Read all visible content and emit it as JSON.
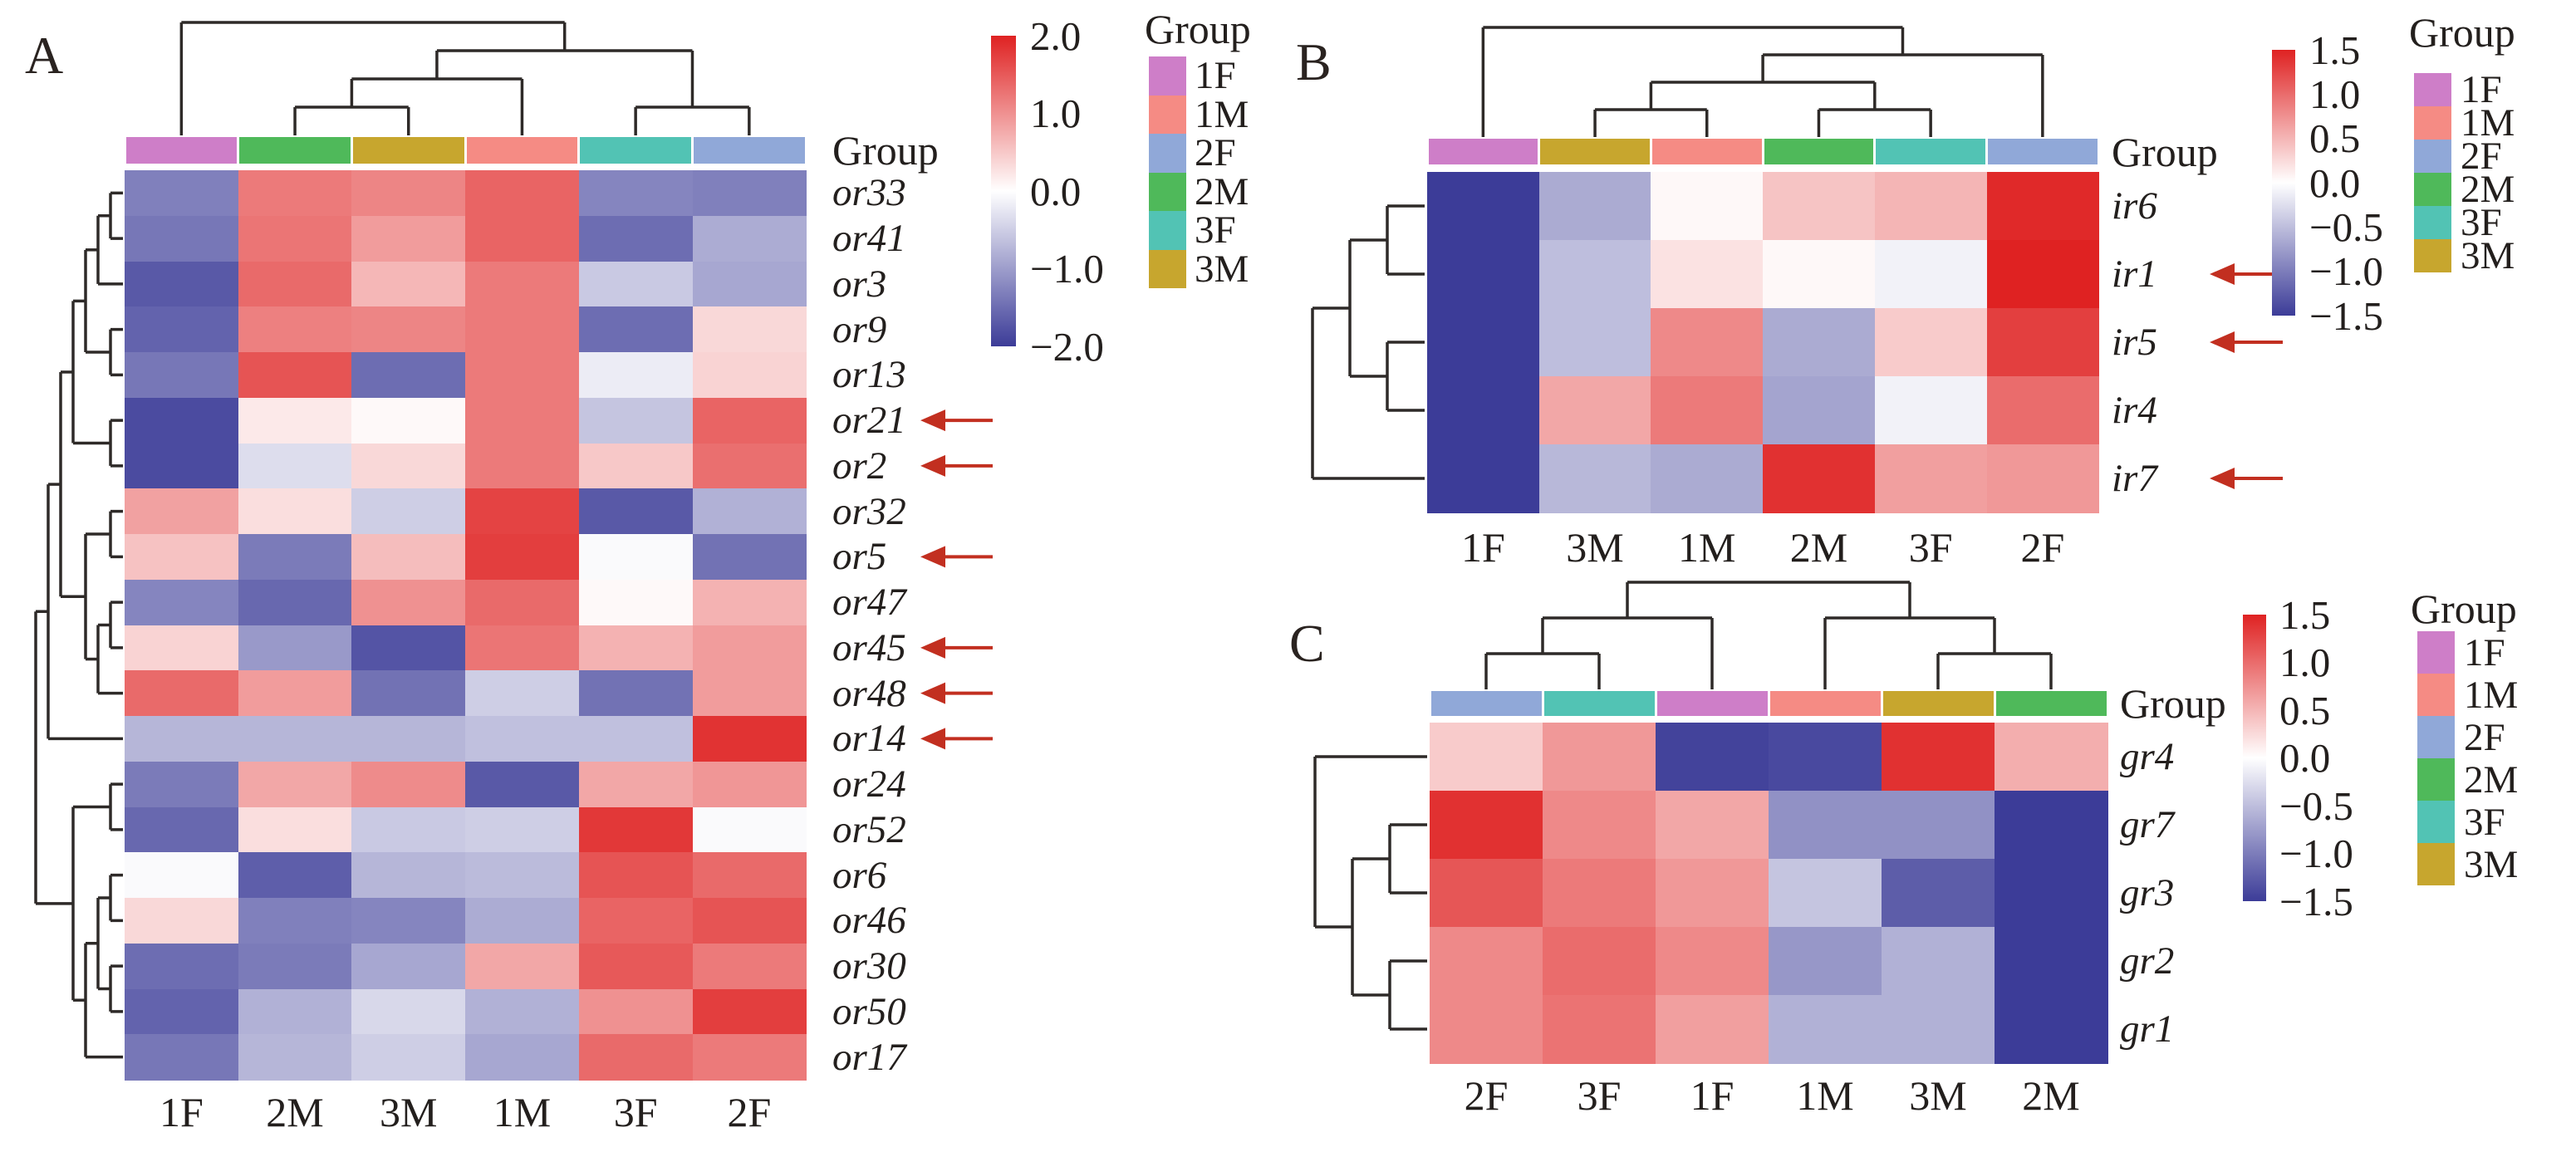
{
  "colormap": {
    "positive_end": "#DF2222",
    "midpoint": "#FFFFFF",
    "negative_end": "#3C3C98"
  },
  "group_colors": {
    "1F": "#CE7EC8",
    "1M": "#F58B84",
    "2F": "#90A8D8",
    "2M": "#4FB95A",
    "3F": "#52C3B4",
    "3M": "#C7A62E"
  },
  "arrow_color": "#C22F20",
  "dendrogram_color": "#2E2A28",
  "chart_data": [
    {
      "type": "heatmap",
      "panel_label": "A",
      "columns": [
        "1F",
        "2M",
        "3M",
        "1M",
        "3F",
        "2F"
      ],
      "rows": [
        "or33",
        "or41",
        "or3",
        "or9",
        "or13",
        "or21",
        "or2",
        "or32",
        "or5",
        "or47",
        "or45",
        "or48",
        "or14",
        "or24",
        "or52",
        "or6",
        "or46",
        "or30",
        "or50",
        "or17"
      ],
      "values": [
        [
          -1.3,
          1.2,
          1.1,
          1.4,
          -1.25,
          -1.3
        ],
        [
          -1.4,
          1.25,
          0.9,
          1.4,
          -1.5,
          -0.85
        ],
        [
          -1.7,
          1.35,
          0.65,
          1.2,
          -0.55,
          -0.9
        ],
        [
          -1.6,
          1.15,
          1.1,
          1.2,
          -1.5,
          0.35
        ],
        [
          -1.4,
          1.55,
          -1.5,
          1.2,
          -0.2,
          0.4
        ],
        [
          -1.85,
          0.2,
          0.05,
          1.2,
          -0.6,
          1.4
        ],
        [
          -1.85,
          -0.35,
          0.35,
          1.2,
          0.5,
          1.3
        ],
        [
          0.85,
          0.3,
          -0.5,
          1.7,
          -1.7,
          -0.8
        ],
        [
          0.55,
          -1.35,
          0.6,
          1.75,
          -0.05,
          -1.45
        ],
        [
          -1.25,
          -1.55,
          1.0,
          1.35,
          0.05,
          0.7
        ],
        [
          0.4,
          -1.05,
          -1.75,
          1.25,
          0.7,
          0.9
        ],
        [
          1.35,
          0.9,
          -1.45,
          -0.5,
          -1.45,
          0.9
        ],
        [
          -0.75,
          -0.75,
          -0.75,
          -0.65,
          -0.65,
          1.85
        ],
        [
          -1.35,
          0.8,
          1.05,
          -1.7,
          0.8,
          0.95
        ],
        [
          -1.55,
          0.3,
          -0.55,
          -0.5,
          1.8,
          -0.05
        ],
        [
          -0.05,
          -1.65,
          -0.75,
          -0.7,
          1.55,
          1.35
        ],
        [
          0.35,
          -1.3,
          -1.25,
          -0.85,
          1.4,
          1.55
        ],
        [
          -1.5,
          -1.35,
          -0.9,
          0.8,
          1.5,
          1.2
        ],
        [
          -1.6,
          -0.8,
          -0.4,
          -0.8,
          1.0,
          1.75
        ],
        [
          -1.4,
          -0.75,
          -0.5,
          -0.9,
          1.35,
          1.2
        ]
      ],
      "zlim": [
        -2.0,
        2.0
      ],
      "colorbar_ticks": [
        "2.0",
        "1.0",
        "0.0",
        "−1.0",
        "−2.0"
      ],
      "colorbar_tick_values": [
        2,
        1,
        0,
        -1,
        -2
      ],
      "arrow_rows": [
        "or21",
        "or2",
        "or5",
        "or45",
        "or48",
        "or14"
      ],
      "annotation_title": "Group",
      "legend": {
        "title": "Group",
        "items": [
          "1F",
          "1M",
          "2F",
          "2M",
          "3F",
          "3M"
        ]
      },
      "column_tree": [
        "1F",
        [
          [
            [
              "2M",
              "3M"
            ],
            "1M"
          ],
          [
            "3F",
            "2F"
          ]
        ]
      ],
      "row_tree": [
        [
          [
            [
              [
                [
                  [
                    "or33",
                    "or41"
                  ],
                  "or3"
                ],
                [
                  "or9",
                  "or13"
                ]
              ],
              [
                "or21",
                "or2"
              ]
            ],
            [
              [
                "or32",
                "or5"
              ],
              [
                [
                  "or47",
                  "or45"
                ],
                "or48"
              ]
            ]
          ],
          "or14"
        ],
        [
          [
            "or24",
            "or52"
          ],
          [
            [
              [
                "or6",
                "or46"
              ],
              [
                "or30",
                "or50"
              ]
            ],
            "or17"
          ]
        ]
      ]
    },
    {
      "type": "heatmap",
      "panel_label": "B",
      "columns": [
        "1F",
        "3M",
        "1M",
        "2M",
        "3F",
        "2F"
      ],
      "rows": [
        "ir6",
        "ir1",
        "ir5",
        "ir4",
        "ir7"
      ],
      "values": [
        [
          -1.5,
          -0.65,
          0.05,
          0.4,
          0.5,
          1.45
        ],
        [
          -1.5,
          -0.5,
          0.2,
          0.05,
          -0.1,
          1.5
        ],
        [
          -1.5,
          -0.5,
          0.8,
          -0.65,
          0.35,
          1.3
        ],
        [
          -1.5,
          0.6,
          0.9,
          -0.7,
          -0.1,
          1.0
        ],
        [
          -1.5,
          -0.55,
          -0.65,
          1.4,
          0.65,
          0.7
        ]
      ],
      "zlim": [
        -1.5,
        1.5
      ],
      "colorbar_ticks": [
        "1.5",
        "1.0",
        "0.5",
        "0.0",
        "−0.5",
        "−1.0",
        "−1.5"
      ],
      "colorbar_tick_values": [
        1.5,
        1,
        0.5,
        0,
        -0.5,
        -1,
        -1.5
      ],
      "arrow_rows": [
        "ir1",
        "ir5",
        "ir7"
      ],
      "annotation_title": "Group",
      "legend": {
        "title": "Group",
        "items": [
          "1F",
          "1M",
          "2F",
          "2M",
          "3F",
          "3M"
        ]
      },
      "column_tree": [
        "1F",
        [
          [
            [
              "3M",
              "1M"
            ],
            [
              "2M",
              "3F"
            ]
          ],
          "2F"
        ]
      ],
      "row_tree": [
        [
          [
            "ir6",
            "ir1"
          ],
          [
            "ir5",
            "ir4"
          ]
        ],
        "ir7"
      ]
    },
    {
      "type": "heatmap",
      "panel_label": "C",
      "columns": [
        "2F",
        "3F",
        "1F",
        "1M",
        "3M",
        "2M"
      ],
      "rows": [
        "gr4",
        "gr7",
        "gr3",
        "gr2",
        "gr1"
      ],
      "values": [
        [
          0.35,
          0.7,
          -1.45,
          -1.4,
          1.4,
          0.55
        ],
        [
          1.4,
          0.8,
          0.6,
          -0.85,
          -0.85,
          -1.5
        ],
        [
          1.15,
          0.9,
          0.7,
          -0.45,
          -1.25,
          -1.5
        ],
        [
          0.8,
          1.0,
          0.8,
          -0.8,
          -0.6,
          -1.5
        ],
        [
          0.8,
          0.95,
          0.65,
          -0.6,
          -0.6,
          -1.5
        ]
      ],
      "zlim": [
        -1.5,
        1.5
      ],
      "colorbar_ticks": [
        "1.5",
        "1.0",
        "0.5",
        "0.0",
        "−0.5",
        "−1.0",
        "−1.5"
      ],
      "colorbar_tick_values": [
        1.5,
        1,
        0.5,
        0,
        -0.5,
        -1,
        -1.5
      ],
      "arrow_rows": [],
      "annotation_title": "Group",
      "legend": {
        "title": "Group",
        "items": [
          "1F",
          "1M",
          "2F",
          "2M",
          "3F",
          "3M"
        ]
      },
      "column_tree": [
        [
          [
            "2F",
            "3F"
          ],
          "1F"
        ],
        [
          "1M",
          [
            "3M",
            "2M"
          ]
        ]
      ],
      "row_tree": [
        "gr4",
        [
          [
            "gr7",
            "gr3"
          ],
          [
            "gr2",
            "gr1"
          ]
        ]
      ]
    }
  ]
}
